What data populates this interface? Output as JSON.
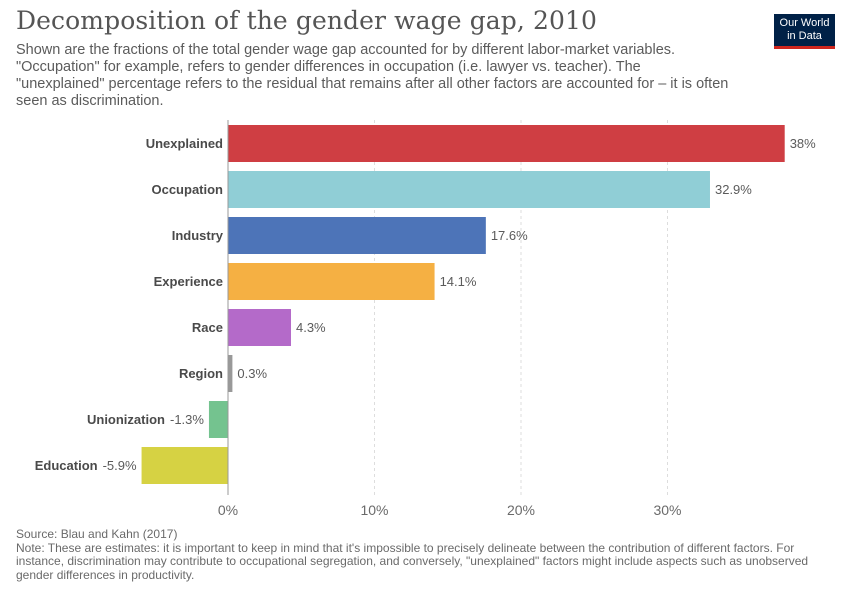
{
  "header": {
    "title": "Decomposition of the gender wage gap, 2010",
    "subtitle": "Shown are the fractions of the total gender wage gap accounted for by different labor-market variables. \"Occupation\" for example, refers to gender differences in occupation (i.e. lawyer vs. teacher). The \"unexplained\" percentage refers to the residual that remains after all other factors are accounted for – it is often seen as discrimination."
  },
  "logo": {
    "line1": "Our World",
    "line2": "in Data"
  },
  "footer": {
    "source": "Source: Blau and Kahn (2017)",
    "note": "Note: These are estimates: it is important to keep in mind that it's impossible to precisely delineate between the contribution of different factors. For instance, discrimination may contribute to occupational segregation, and conversely, \"unexplained\" factors might include aspects such as unobserved gender differences in productivity."
  },
  "chart_data": {
    "type": "bar",
    "orientation": "horizontal",
    "categories": [
      "Unexplained",
      "Occupation",
      "Industry",
      "Experience",
      "Race",
      "Region",
      "Unionization",
      "Education"
    ],
    "values": [
      38,
      32.9,
      17.6,
      14.1,
      4.3,
      0.3,
      -1.3,
      -5.9
    ],
    "value_labels": [
      "38%",
      "32.9%",
      "17.6%",
      "14.1%",
      "4.3%",
      "0.3%",
      "-1.3%",
      "-5.9%"
    ],
    "colors": [
      "#cf3e43",
      "#90ced6",
      "#4d74b8",
      "#f5b043",
      "#b46ac9",
      "#999999",
      "#74c38f",
      "#d6d243"
    ],
    "xticks": [
      0,
      10,
      20,
      30
    ],
    "xtick_labels": [
      "0%",
      "10%",
      "20%",
      "30%"
    ],
    "xlim": [
      -5.9,
      38
    ],
    "grid": true
  }
}
